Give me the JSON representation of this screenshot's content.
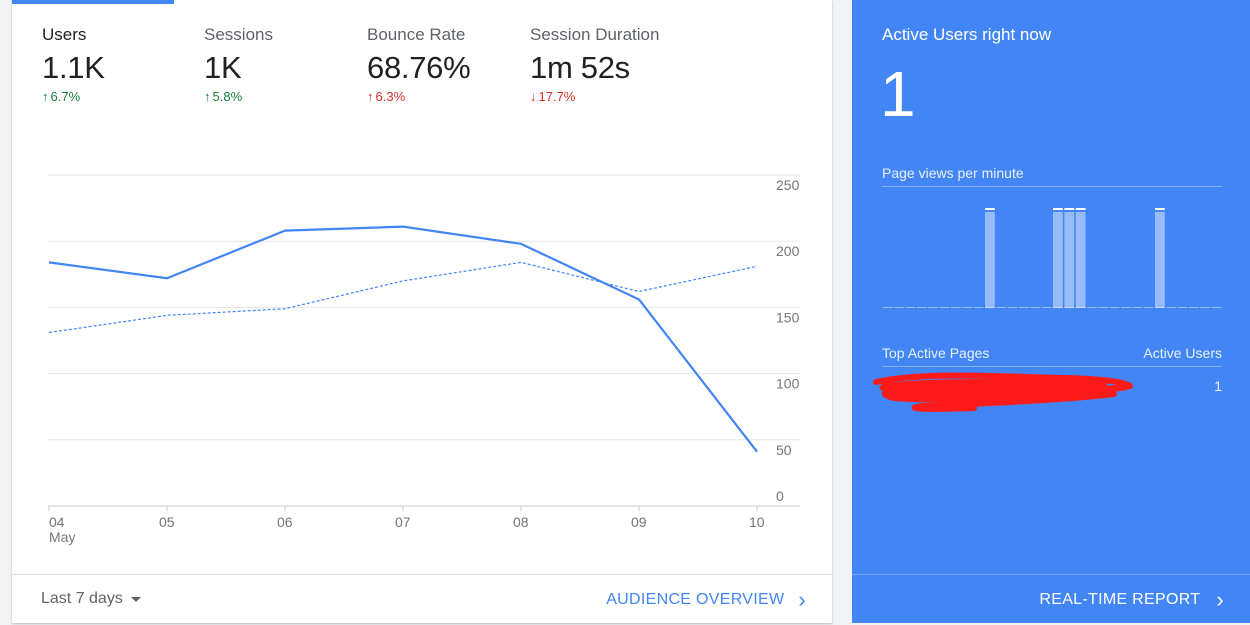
{
  "metrics": [
    {
      "label": "Users",
      "value": "1.1K",
      "change": "6.7%",
      "direction": "up",
      "active": true
    },
    {
      "label": "Sessions",
      "value": "1K",
      "change": "5.8%",
      "direction": "up",
      "active": false
    },
    {
      "label": "Bounce Rate",
      "value": "68.76%",
      "change": "6.3%",
      "direction": "up",
      "active": false
    },
    {
      "label": "Session Duration",
      "value": "1m 52s",
      "change": "17.7%",
      "direction": "down",
      "active": false
    }
  ],
  "chart_data": {
    "type": "line",
    "categories": [
      "04",
      "05",
      "06",
      "07",
      "08",
      "09",
      "10"
    ],
    "x_sublabel": "May",
    "series": [
      {
        "values": [
          184,
          172,
          208,
          211,
          198,
          156,
          41
        ],
        "style": "solid",
        "color": "#4285f4"
      },
      {
        "values": [
          131,
          144,
          149,
          170,
          184,
          162,
          181
        ],
        "style": "dashed",
        "color": "#4285f4"
      }
    ],
    "yticks": [
      0,
      50,
      100,
      150,
      200,
      250
    ],
    "ylim": [
      0,
      250
    ],
    "grid": true
  },
  "footer": {
    "range_label": "Last 7 days",
    "audience_link": "AUDIENCE OVERVIEW"
  },
  "realtime": {
    "title": "Active Users right now",
    "count": "1",
    "pageviews_label": "Page views per minute",
    "pageviews": [
      0,
      0,
      0,
      0,
      0,
      0,
      0,
      0,
      0,
      1,
      0,
      0,
      0,
      0,
      0,
      1,
      1,
      1,
      0,
      0,
      0,
      0,
      0,
      0,
      1,
      0,
      0,
      0,
      0,
      0
    ],
    "top_pages_label": "Top Active Pages",
    "active_users_label": "Active Users",
    "top_pages": [
      {
        "count": "1"
      }
    ],
    "report_link": "REAL-TIME REPORT"
  },
  "icons": {
    "trend_up": "arrow-up-icon",
    "trend_down": "arrow-down-icon",
    "dropdown": "caret-down-icon",
    "link": "chevron-right-icon"
  }
}
